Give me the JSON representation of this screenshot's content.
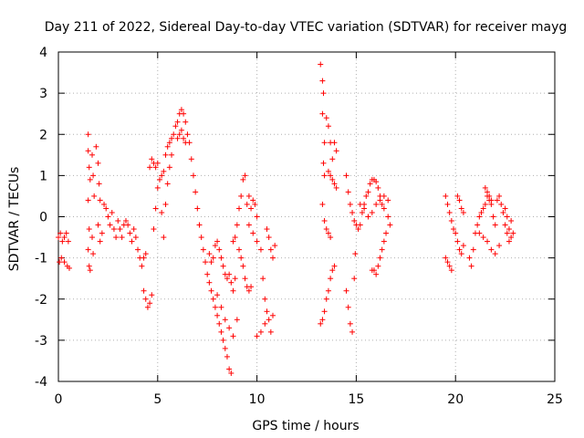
{
  "chart_data": {
    "type": "scatter",
    "title": "Day 211 of 2022, Sidereal Day-to-day VTEC variation (SDTVAR) for receiver mayg",
    "xlabel": "GPS time / hours",
    "ylabel": "SDTVAR / TECUs",
    "xlim": [
      0,
      25
    ],
    "ylim": [
      -4,
      4
    ],
    "xticks": [
      0,
      5,
      10,
      15,
      20,
      25
    ],
    "yticks": [
      -4,
      -3,
      -2,
      -1,
      0,
      1,
      2,
      3,
      4
    ],
    "grid": true,
    "marker": "+",
    "color": "#ff0000",
    "series": [
      {
        "name": "SDTVAR",
        "points": [
          [
            0.0,
            -0.5
          ],
          [
            0.1,
            -0.4
          ],
          [
            0.2,
            -0.6
          ],
          [
            0.3,
            -0.5
          ],
          [
            0.4,
            -0.4
          ],
          [
            0.5,
            -0.6
          ],
          [
            0.05,
            -1.1
          ],
          [
            0.15,
            -1.0
          ],
          [
            0.3,
            -1.1
          ],
          [
            0.45,
            -1.2
          ],
          [
            0.55,
            -1.25
          ],
          [
            1.5,
            2.0
          ],
          [
            1.5,
            1.6
          ],
          [
            1.55,
            1.2
          ],
          [
            1.6,
            0.9
          ],
          [
            1.5,
            0.4
          ],
          [
            1.55,
            -0.3
          ],
          [
            1.5,
            -0.8
          ],
          [
            1.55,
            -1.2
          ],
          [
            1.6,
            -1.3
          ],
          [
            1.7,
            1.5
          ],
          [
            1.75,
            1.0
          ],
          [
            1.8,
            0.5
          ],
          [
            1.7,
            -0.5
          ],
          [
            1.75,
            -0.9
          ],
          [
            1.9,
            1.7
          ],
          [
            2.0,
            1.3
          ],
          [
            2.05,
            0.8
          ],
          [
            2.1,
            0.4
          ],
          [
            2.0,
            -0.2
          ],
          [
            2.1,
            -0.6
          ],
          [
            2.2,
            -0.4
          ],
          [
            2.3,
            0.3
          ],
          [
            2.4,
            0.2
          ],
          [
            2.5,
            0.0
          ],
          [
            2.6,
            -0.2
          ],
          [
            2.7,
            0.1
          ],
          [
            2.8,
            -0.3
          ],
          [
            2.9,
            -0.5
          ],
          [
            3.0,
            -0.1
          ],
          [
            3.1,
            -0.3
          ],
          [
            3.2,
            -0.5
          ],
          [
            3.3,
            -0.2
          ],
          [
            3.4,
            -0.1
          ],
          [
            3.5,
            -0.2
          ],
          [
            3.6,
            -0.4
          ],
          [
            3.7,
            -0.6
          ],
          [
            3.8,
            -0.3
          ],
          [
            3.9,
            -0.5
          ],
          [
            4.0,
            -0.8
          ],
          [
            4.1,
            -1.0
          ],
          [
            4.2,
            -1.2
          ],
          [
            4.3,
            -1.0
          ],
          [
            4.4,
            -0.9
          ],
          [
            4.3,
            -1.8
          ],
          [
            4.4,
            -2.0
          ],
          [
            4.5,
            -2.2
          ],
          [
            4.6,
            -2.1
          ],
          [
            4.7,
            -1.9
          ],
          [
            4.6,
            1.2
          ],
          [
            4.7,
            1.4
          ],
          [
            4.8,
            1.3
          ],
          [
            4.9,
            1.2
          ],
          [
            5.0,
            1.3
          ],
          [
            4.8,
            -0.3
          ],
          [
            4.9,
            0.2
          ],
          [
            5.0,
            0.7
          ],
          [
            5.1,
            0.9
          ],
          [
            5.2,
            1.0
          ],
          [
            5.3,
            1.1
          ],
          [
            5.2,
            0.1
          ],
          [
            5.3,
            -0.5
          ],
          [
            5.4,
            0.3
          ],
          [
            5.5,
            0.8
          ],
          [
            5.6,
            1.2
          ],
          [
            5.7,
            1.5
          ],
          [
            5.4,
            1.5
          ],
          [
            5.5,
            1.7
          ],
          [
            5.6,
            1.8
          ],
          [
            5.7,
            1.9
          ],
          [
            5.8,
            2.0
          ],
          [
            5.9,
            2.2
          ],
          [
            6.0,
            2.3
          ],
          [
            6.1,
            2.5
          ],
          [
            6.2,
            2.6
          ],
          [
            6.3,
            2.5
          ],
          [
            6.4,
            2.3
          ],
          [
            6.5,
            2.0
          ],
          [
            6.6,
            1.8
          ],
          [
            6.0,
            1.9
          ],
          [
            6.1,
            2.0
          ],
          [
            6.2,
            2.1
          ],
          [
            6.3,
            1.9
          ],
          [
            6.4,
            1.8
          ],
          [
            6.7,
            1.4
          ],
          [
            6.8,
            1.0
          ],
          [
            6.9,
            0.6
          ],
          [
            7.0,
            0.2
          ],
          [
            7.1,
            -0.2
          ],
          [
            7.2,
            -0.5
          ],
          [
            7.3,
            -0.8
          ],
          [
            7.4,
            -1.1
          ],
          [
            7.5,
            -1.4
          ],
          [
            7.6,
            -1.6
          ],
          [
            7.7,
            -1.8
          ],
          [
            7.8,
            -2.0
          ],
          [
            7.9,
            -2.2
          ],
          [
            8.0,
            -2.4
          ],
          [
            8.1,
            -2.6
          ],
          [
            8.2,
            -2.8
          ],
          [
            8.3,
            -3.0
          ],
          [
            8.4,
            -3.2
          ],
          [
            8.5,
            -3.4
          ],
          [
            8.6,
            -3.7
          ],
          [
            8.7,
            -3.8
          ],
          [
            7.6,
            -0.9
          ],
          [
            7.7,
            -1.1
          ],
          [
            7.8,
            -1.0
          ],
          [
            7.9,
            -0.7
          ],
          [
            8.0,
            -0.6
          ],
          [
            8.1,
            -0.8
          ],
          [
            8.2,
            -1.0
          ],
          [
            8.3,
            -1.2
          ],
          [
            8.4,
            -1.4
          ],
          [
            8.5,
            -1.5
          ],
          [
            8.6,
            -1.4
          ],
          [
            8.7,
            -1.6
          ],
          [
            8.8,
            -1.8
          ],
          [
            8.9,
            -1.5
          ],
          [
            8.0,
            -1.9
          ],
          [
            8.2,
            -2.2
          ],
          [
            8.4,
            -2.5
          ],
          [
            8.6,
            -2.7
          ],
          [
            8.8,
            -2.9
          ],
          [
            9.0,
            -2.5
          ],
          [
            8.8,
            -0.6
          ],
          [
            8.9,
            -0.5
          ],
          [
            9.0,
            -0.2
          ],
          [
            9.1,
            0.2
          ],
          [
            9.2,
            0.5
          ],
          [
            9.3,
            0.9
          ],
          [
            9.4,
            1.0
          ],
          [
            9.1,
            -0.8
          ],
          [
            9.2,
            -1.0
          ],
          [
            9.3,
            -1.2
          ],
          [
            9.4,
            -1.5
          ],
          [
            9.5,
            -1.7
          ],
          [
            9.6,
            -1.8
          ],
          [
            9.7,
            -1.7
          ],
          [
            9.5,
            0.3
          ],
          [
            9.6,
            0.5
          ],
          [
            9.7,
            0.2
          ],
          [
            9.8,
            0.4
          ],
          [
            9.9,
            0.3
          ],
          [
            10.0,
            0.0
          ],
          [
            9.6,
            -0.2
          ],
          [
            9.8,
            -0.4
          ],
          [
            10.0,
            -0.6
          ],
          [
            10.2,
            -0.8
          ],
          [
            10.3,
            -1.5
          ],
          [
            10.4,
            -2.0
          ],
          [
            10.0,
            -2.9
          ],
          [
            10.2,
            -2.8
          ],
          [
            10.4,
            -2.6
          ],
          [
            10.5,
            -2.3
          ],
          [
            10.6,
            -2.5
          ],
          [
            10.7,
            -2.8
          ],
          [
            10.5,
            -0.3
          ],
          [
            10.6,
            -0.5
          ],
          [
            10.7,
            -0.8
          ],
          [
            10.8,
            -1.0
          ],
          [
            10.9,
            -0.7
          ],
          [
            10.8,
            -2.4
          ],
          [
            13.2,
            -2.6
          ],
          [
            13.3,
            -2.5
          ],
          [
            13.4,
            -2.3
          ],
          [
            13.5,
            -2.0
          ],
          [
            13.6,
            -1.8
          ],
          [
            13.7,
            -1.5
          ],
          [
            13.8,
            -1.3
          ],
          [
            13.9,
            -1.2
          ],
          [
            13.2,
            3.7
          ],
          [
            13.3,
            3.3
          ],
          [
            13.35,
            3.0
          ],
          [
            13.3,
            2.5
          ],
          [
            13.4,
            1.8
          ],
          [
            13.35,
            1.3
          ],
          [
            13.4,
            1.0
          ],
          [
            13.3,
            0.3
          ],
          [
            13.4,
            -0.1
          ],
          [
            13.5,
            -0.3
          ],
          [
            13.6,
            -0.4
          ],
          [
            13.7,
            -0.5
          ],
          [
            13.5,
            2.4
          ],
          [
            13.6,
            2.2
          ],
          [
            13.7,
            1.8
          ],
          [
            13.8,
            1.4
          ],
          [
            13.9,
            1.8
          ],
          [
            14.0,
            1.6
          ],
          [
            13.6,
            1.1
          ],
          [
            13.7,
            1.0
          ],
          [
            13.8,
            0.9
          ],
          [
            13.9,
            0.8
          ],
          [
            14.0,
            0.7
          ],
          [
            14.5,
            -1.8
          ],
          [
            14.6,
            -2.2
          ],
          [
            14.7,
            -2.6
          ],
          [
            14.8,
            -2.8
          ],
          [
            14.9,
            -1.5
          ],
          [
            14.95,
            -0.9
          ],
          [
            14.5,
            1.0
          ],
          [
            14.6,
            0.6
          ],
          [
            14.7,
            0.3
          ],
          [
            14.8,
            0.1
          ],
          [
            14.9,
            -0.1
          ],
          [
            15.0,
            -0.2
          ],
          [
            15.1,
            -0.3
          ],
          [
            15.2,
            -0.2
          ],
          [
            15.3,
            0.1
          ],
          [
            15.4,
            0.3
          ],
          [
            15.5,
            0.5
          ],
          [
            15.6,
            0.6
          ],
          [
            15.7,
            0.8
          ],
          [
            15.8,
            0.9
          ],
          [
            15.9,
            0.9
          ],
          [
            16.0,
            0.85
          ],
          [
            16.1,
            0.7
          ],
          [
            16.2,
            0.5
          ],
          [
            16.3,
            0.3
          ],
          [
            16.4,
            0.2
          ],
          [
            15.2,
            0.3
          ],
          [
            15.4,
            0.2
          ],
          [
            15.6,
            0.0
          ],
          [
            15.8,
            0.1
          ],
          [
            16.0,
            0.3
          ],
          [
            16.2,
            0.4
          ],
          [
            16.4,
            0.5
          ],
          [
            16.6,
            0.4
          ],
          [
            16.6,
            0.0
          ],
          [
            16.7,
            -0.2
          ],
          [
            16.5,
            -0.4
          ],
          [
            16.4,
            -0.6
          ],
          [
            16.3,
            -0.8
          ],
          [
            16.2,
            -1.0
          ],
          [
            16.1,
            -1.2
          ],
          [
            15.9,
            -1.3
          ],
          [
            16.0,
            -1.4
          ],
          [
            15.8,
            -1.3
          ],
          [
            19.5,
            0.5
          ],
          [
            19.6,
            0.3
          ],
          [
            19.7,
            0.1
          ],
          [
            19.8,
            -0.1
          ],
          [
            19.9,
            -0.3
          ],
          [
            19.5,
            -1.0
          ],
          [
            19.6,
            -1.1
          ],
          [
            19.7,
            -1.2
          ],
          [
            19.8,
            -1.3
          ],
          [
            20.0,
            -0.4
          ],
          [
            20.1,
            -0.6
          ],
          [
            20.2,
            -0.8
          ],
          [
            20.3,
            -0.9
          ],
          [
            20.4,
            -0.7
          ],
          [
            20.1,
            0.5
          ],
          [
            20.2,
            0.4
          ],
          [
            20.3,
            0.2
          ],
          [
            20.4,
            0.1
          ],
          [
            20.7,
            -1.0
          ],
          [
            20.8,
            -1.2
          ],
          [
            20.9,
            -0.8
          ],
          [
            21.0,
            -0.4
          ],
          [
            21.1,
            -0.2
          ],
          [
            21.2,
            0.0
          ],
          [
            21.3,
            0.1
          ],
          [
            21.4,
            0.2
          ],
          [
            21.5,
            0.3
          ],
          [
            21.6,
            0.5
          ],
          [
            21.7,
            0.4
          ],
          [
            21.8,
            0.3
          ],
          [
            21.9,
            0.0
          ],
          [
            22.0,
            -0.2
          ],
          [
            21.5,
            0.7
          ],
          [
            21.6,
            0.6
          ],
          [
            21.7,
            0.5
          ],
          [
            21.8,
            0.4
          ],
          [
            21.2,
            -0.4
          ],
          [
            21.4,
            -0.5
          ],
          [
            21.6,
            -0.6
          ],
          [
            21.8,
            -0.8
          ],
          [
            22.0,
            -0.9
          ],
          [
            22.2,
            -0.7
          ],
          [
            22.1,
            0.4
          ],
          [
            22.2,
            0.5
          ],
          [
            22.3,
            0.3
          ],
          [
            22.4,
            0.1
          ],
          [
            22.5,
            -0.2
          ],
          [
            22.6,
            -0.4
          ],
          [
            22.7,
            -0.6
          ],
          [
            22.5,
            0.2
          ],
          [
            22.6,
            0.0
          ],
          [
            22.7,
            -0.3
          ],
          [
            22.8,
            -0.1
          ],
          [
            22.8,
            -0.5
          ],
          [
            22.9,
            -0.4
          ]
        ]
      }
    ]
  }
}
